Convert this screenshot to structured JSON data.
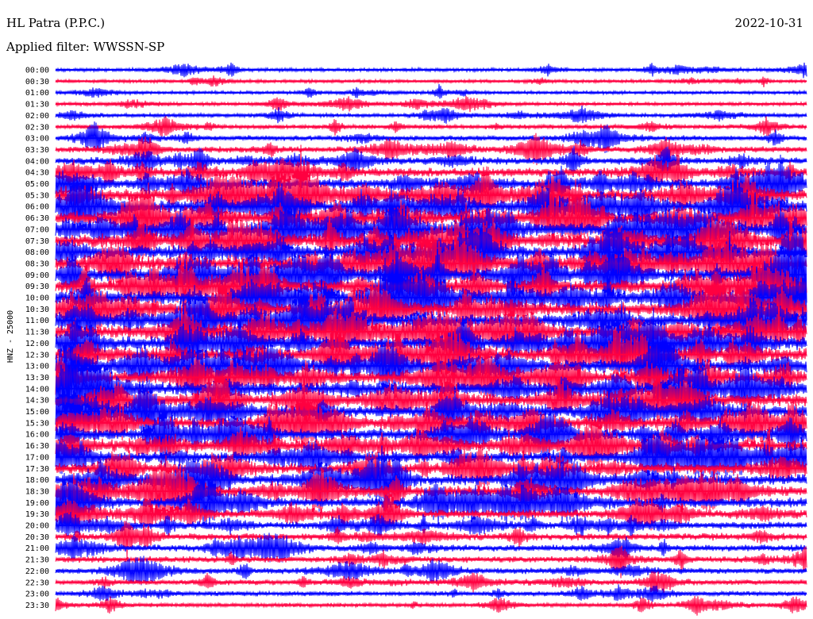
{
  "header": {
    "station": "HL Patra (P.P.C.)",
    "date": "2022-10-31",
    "filter_text": "Applied filter: WWSSN-SP"
  },
  "chart_data": {
    "type": "line",
    "title": "HL Patra (P.P.C.)",
    "date": "2022-10-31",
    "filter": "WWSSN-SP",
    "ylabel": "HNZ - 25000",
    "rows": [
      {
        "time": "00:00",
        "color": "#0000ff",
        "activity": 0.15
      },
      {
        "time": "00:30",
        "color": "#ff0040",
        "activity": 0.12
      },
      {
        "time": "01:00",
        "color": "#0000ff",
        "activity": 0.12
      },
      {
        "time": "01:30",
        "color": "#ff0040",
        "activity": 0.14
      },
      {
        "time": "02:00",
        "color": "#0000ff",
        "activity": 0.18
      },
      {
        "time": "02:30",
        "color": "#ff0040",
        "activity": 0.22
      },
      {
        "time": "03:00",
        "color": "#0000ff",
        "activity": 0.3
      },
      {
        "time": "03:30",
        "color": "#ff0040",
        "activity": 0.38
      },
      {
        "time": "04:00",
        "color": "#0000ff",
        "activity": 0.5
      },
      {
        "time": "04:30",
        "color": "#ff0040",
        "activity": 0.62
      },
      {
        "time": "05:00",
        "color": "#0000ff",
        "activity": 0.75
      },
      {
        "time": "05:30",
        "color": "#ff0040",
        "activity": 0.9
      },
      {
        "time": "06:00",
        "color": "#0000ff",
        "activity": 0.95
      },
      {
        "time": "06:30",
        "color": "#ff0040",
        "activity": 1.0
      },
      {
        "time": "07:00",
        "color": "#0000ff",
        "activity": 1.0
      },
      {
        "time": "07:30",
        "color": "#ff0040",
        "activity": 1.0
      },
      {
        "time": "08:00",
        "color": "#0000ff",
        "activity": 1.0
      },
      {
        "time": "08:30",
        "color": "#ff0040",
        "activity": 1.0
      },
      {
        "time": "09:00",
        "color": "#0000ff",
        "activity": 1.0
      },
      {
        "time": "09:30",
        "color": "#ff0040",
        "activity": 1.0
      },
      {
        "time": "10:00",
        "color": "#0000ff",
        "activity": 1.0
      },
      {
        "time": "10:30",
        "color": "#ff0040",
        "activity": 1.0
      },
      {
        "time": "11:00",
        "color": "#0000ff",
        "activity": 1.0
      },
      {
        "time": "11:30",
        "color": "#ff0040",
        "activity": 1.0
      },
      {
        "time": "12:00",
        "color": "#0000ff",
        "activity": 1.0
      },
      {
        "time": "12:30",
        "color": "#ff0040",
        "activity": 1.0
      },
      {
        "time": "13:00",
        "color": "#0000ff",
        "activity": 1.0
      },
      {
        "time": "13:30",
        "color": "#ff0040",
        "activity": 0.98
      },
      {
        "time": "14:00",
        "color": "#0000ff",
        "activity": 0.95
      },
      {
        "time": "14:30",
        "color": "#ff0040",
        "activity": 0.95
      },
      {
        "time": "15:00",
        "color": "#0000ff",
        "activity": 0.92
      },
      {
        "time": "15:30",
        "color": "#ff0040",
        "activity": 0.9
      },
      {
        "time": "16:00",
        "color": "#0000ff",
        "activity": 0.88
      },
      {
        "time": "16:30",
        "color": "#ff0040",
        "activity": 0.85
      },
      {
        "time": "17:00",
        "color": "#0000ff",
        "activity": 0.82
      },
      {
        "time": "17:30",
        "color": "#ff0040",
        "activity": 0.8
      },
      {
        "time": "18:00",
        "color": "#0000ff",
        "activity": 0.8
      },
      {
        "time": "18:30",
        "color": "#ff0040",
        "activity": 0.78
      },
      {
        "time": "19:00",
        "color": "#0000ff",
        "activity": 0.7
      },
      {
        "time": "19:30",
        "color": "#ff0040",
        "activity": 0.6
      },
      {
        "time": "20:00",
        "color": "#0000ff",
        "activity": 0.5
      },
      {
        "time": "20:30",
        "color": "#ff0040",
        "activity": 0.45
      },
      {
        "time": "21:00",
        "color": "#0000ff",
        "activity": 0.42
      },
      {
        "time": "21:30",
        "color": "#ff0040",
        "activity": 0.38
      },
      {
        "time": "22:00",
        "color": "#0000ff",
        "activity": 0.35
      },
      {
        "time": "22:30",
        "color": "#ff0040",
        "activity": 0.3
      },
      {
        "time": "23:00",
        "color": "#0000ff",
        "activity": 0.25
      },
      {
        "time": "23:30",
        "color": "#ff0040",
        "activity": 0.2
      }
    ],
    "grid": false,
    "legend": "none"
  }
}
